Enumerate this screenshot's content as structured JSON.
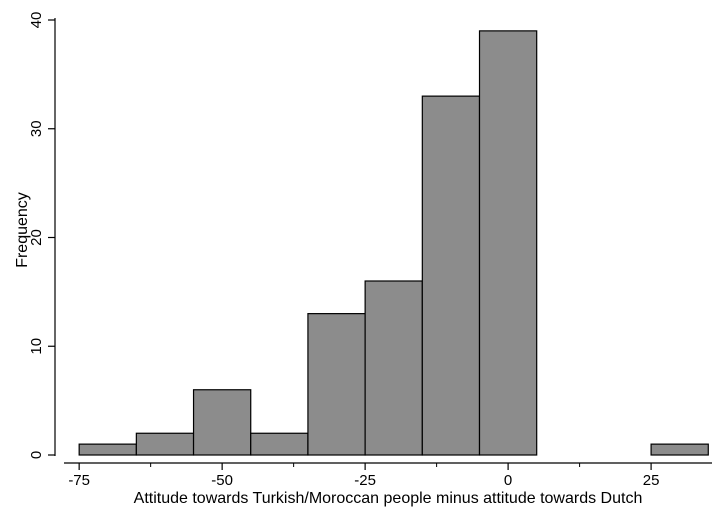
{
  "chart_data": {
    "type": "bar",
    "bins": [
      {
        "start": -75,
        "end": -65,
        "value": 1
      },
      {
        "start": -65,
        "end": -55,
        "value": 2
      },
      {
        "start": -55,
        "end": -45,
        "value": 6
      },
      {
        "start": -45,
        "end": -35,
        "value": 2
      },
      {
        "start": -35,
        "end": -25,
        "value": 13
      },
      {
        "start": -25,
        "end": -15,
        "value": 16
      },
      {
        "start": -15,
        "end": -5,
        "value": 33
      },
      {
        "start": -5,
        "end": 5,
        "value": 39
      },
      {
        "start": 25,
        "end": 35,
        "value": 1
      }
    ],
    "xlabel": "Attitude towards Turkish/Moroccan people minus attitude towards Dutch",
    "ylabel": "Frequency",
    "xticks": [
      {
        "value": -75,
        "label": "-75"
      },
      {
        "value": -50,
        "label": "-50"
      },
      {
        "value": -25,
        "label": "-25"
      },
      {
        "value": 0,
        "label": "0"
      },
      {
        "value": 25,
        "label": "25"
      }
    ],
    "yticks": [
      {
        "value": 0,
        "label": "0"
      },
      {
        "value": 10,
        "label": "10"
      },
      {
        "value": 20,
        "label": "20"
      },
      {
        "value": 30,
        "label": "30"
      },
      {
        "value": 40,
        "label": "40"
      }
    ],
    "minor_xticks": [
      -62.5,
      -37.5,
      -12.5,
      12.5
    ],
    "xlim": [
      -78,
      36
    ],
    "ylim": [
      0,
      40
    ],
    "grid": false,
    "bar_color": "#8c8c8c",
    "edge_color": "#000000"
  }
}
